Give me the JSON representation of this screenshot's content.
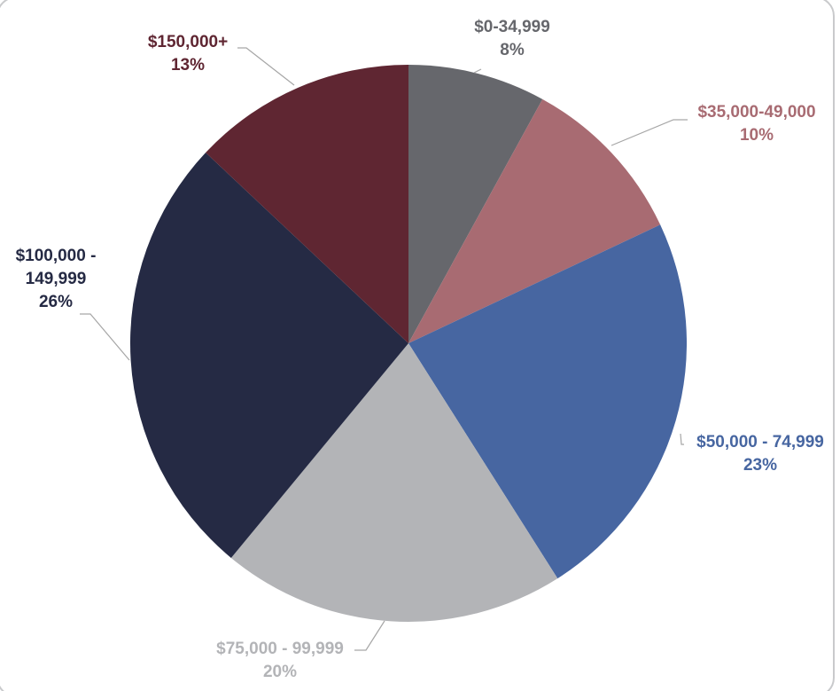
{
  "chart_data": {
    "type": "pie",
    "title": "",
    "start_angle_deg": 0,
    "direction": "clockwise",
    "slices": [
      {
        "label": "$0-34,999",
        "value": 8,
        "percent_label": "8%",
        "color": "#66676c",
        "label_color": "#66676c"
      },
      {
        "label": "$35,000-49,000",
        "value": 10,
        "percent_label": "10%",
        "color": "#a86b72",
        "label_color": "#a86b72"
      },
      {
        "label": "$50,000 - 74,999",
        "value": 23,
        "percent_label": "23%",
        "color": "#4766a1",
        "label_color": "#4766a1"
      },
      {
        "label": "$75,000 - 99,999",
        "value": 20,
        "percent_label": "20%",
        "color": "#b3b4b7",
        "label_color": "#b3b4b7"
      },
      {
        "label": "$100,000 - 149,999",
        "label_lines": [
          "$100,000 -",
          "149,999"
        ],
        "value": 26,
        "percent_label": "26%",
        "color": "#252a44",
        "label_color": "#252a44"
      },
      {
        "label": "$150,000+",
        "value": 13,
        "percent_label": "13%",
        "color": "#5f2632",
        "label_color": "#5f2632"
      }
    ]
  }
}
